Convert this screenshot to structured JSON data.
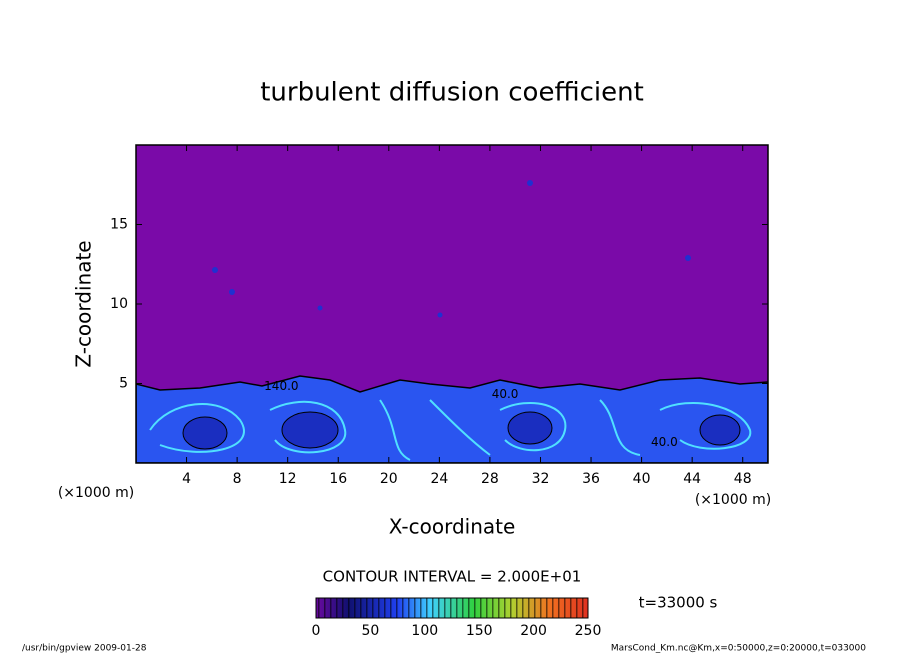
{
  "chart_data": {
    "type": "contour",
    "title": "turbulent diffusion coefficient",
    "xlabel": "X-coordinate",
    "ylabel": "Z-coordinate",
    "x_unit": "(×1000 m)",
    "xlim": [
      0,
      50
    ],
    "xticks": [
      4,
      8,
      12,
      16,
      20,
      24,
      28,
      32,
      36,
      40,
      44,
      48
    ],
    "ylim": [
      0,
      20
    ],
    "yticks": [
      5,
      10,
      15
    ],
    "contour_interval": "CONTOUR INTERVAL = 2.000E+01",
    "contour_labels": [
      {
        "text": "140.0",
        "x": 11.5,
        "z": 4.8
      },
      {
        "text": "40.0",
        "x": 29.2,
        "z": 4.3
      },
      {
        "text": "40.0",
        "x": 41.8,
        "z": 1.3
      }
    ],
    "clim": [
      0,
      250
    ],
    "cticks": [
      0,
      50,
      100,
      150,
      200,
      250
    ],
    "time_label": "t=33000 s",
    "footer_left": "/usr/bin/gpview  2009-01-28",
    "footer_right": "MarsCond_Km.nc@Km,x=0:50000,z=0:20000,t=033000"
  }
}
